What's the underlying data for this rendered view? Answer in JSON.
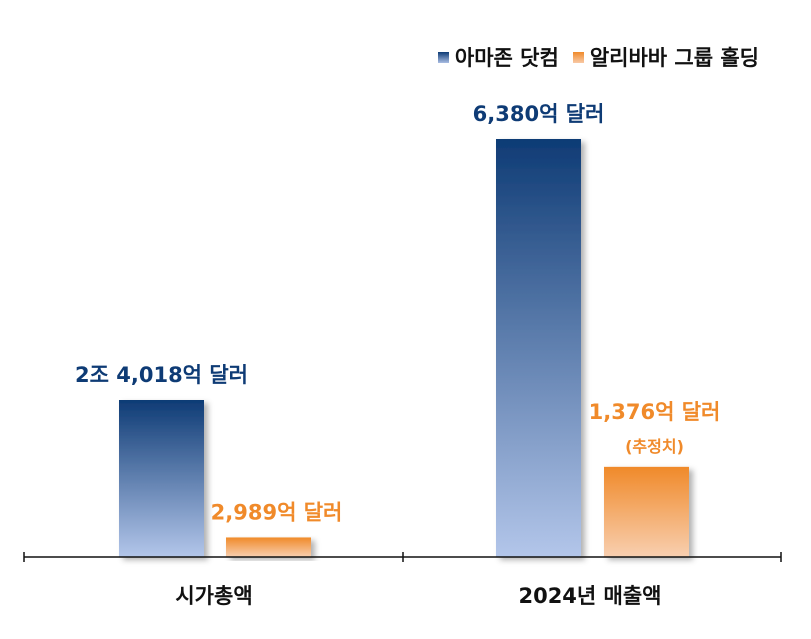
{
  "chart_data": {
    "type": "bar",
    "categories": [
      "시가총액",
      "2024년 매출액"
    ],
    "series": [
      {
        "name": "아마존 닷컴",
        "values": [
          24018,
          6380
        ],
        "labels": [
          "2조 4,018억 달러",
          "6,380억 달러"
        ],
        "sublabels": [
          "",
          ""
        ],
        "color": "#0e3b75",
        "label_color": "#0e3b75"
      },
      {
        "name": "알리바바 그룹 홀딩",
        "values": [
          2989,
          1376
        ],
        "labels": [
          "2,989억 달러",
          "1,376억 달러"
        ],
        "sublabels": [
          "",
          "(추정치)"
        ],
        "color": "#f08a2a",
        "label_color": "#f08a2a"
      }
    ],
    "title": "",
    "xlabel": "",
    "ylabel": "",
    "grid": false,
    "legend": "top-right"
  }
}
